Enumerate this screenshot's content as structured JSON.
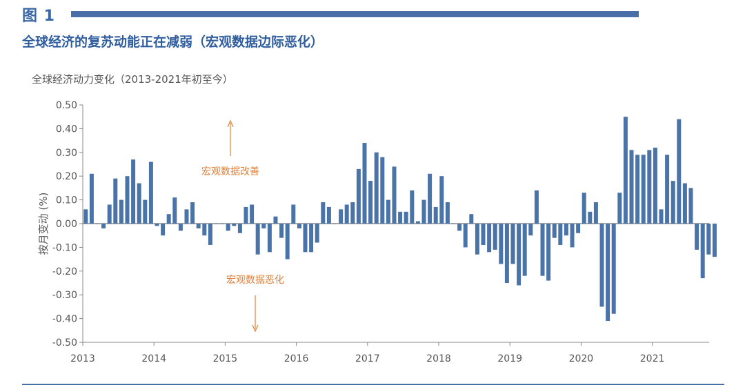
{
  "header": {
    "figure_label": "图 1",
    "title": "全球经济的复苏动能正在减弱（宏观数据边际恶化）",
    "accent_color": "#4a6fa8",
    "title_color": "#2f5d9e"
  },
  "chart_data": {
    "type": "bar",
    "title": "全球经济动力变化（2013-2021年初至今）",
    "ylabel": "按月变动 (%)",
    "xlabel": "",
    "ylim": [
      -0.5,
      0.5
    ],
    "yticks": [
      "0.50",
      "0.40",
      "0.30",
      "0.20",
      "0.10",
      "0.00",
      "-0.10",
      "-0.20",
      "-0.30",
      "-0.40",
      "-0.50"
    ],
    "x_years": [
      "2013",
      "2014",
      "2015",
      "2016",
      "2017",
      "2018",
      "2019",
      "2020",
      "2021"
    ],
    "bar_color": "#4a73a8",
    "annotation_color": "#e0803a",
    "annotations": {
      "up": "宏观数据改善",
      "down": "宏观数据恶化"
    },
    "monthly_values": [
      0.06,
      0.21,
      0.0,
      -0.02,
      0.08,
      0.19,
      0.1,
      0.2,
      0.27,
      0.17,
      0.1,
      0.26,
      -0.01,
      -0.05,
      0.04,
      0.11,
      -0.03,
      0.06,
      0.09,
      -0.02,
      -0.05,
      -0.09,
      0.0,
      0.0,
      -0.03,
      -0.01,
      -0.04,
      0.07,
      0.08,
      -0.13,
      -0.02,
      -0.12,
      0.03,
      -0.06,
      -0.15,
      0.08,
      -0.02,
      -0.12,
      -0.12,
      -0.08,
      0.09,
      0.07,
      0.0,
      0.06,
      0.08,
      0.09,
      0.23,
      0.34,
      0.18,
      0.3,
      0.28,
      0.1,
      0.24,
      0.05,
      0.05,
      0.14,
      0.01,
      0.1,
      0.21,
      0.07,
      0.2,
      0.09,
      0.0,
      -0.03,
      -0.1,
      0.04,
      -0.13,
      -0.09,
      -0.12,
      -0.11,
      -0.17,
      -0.25,
      -0.17,
      -0.26,
      -0.22,
      -0.05,
      0.14,
      -0.22,
      -0.24,
      -0.06,
      -0.09,
      -0.05,
      -0.1,
      -0.04,
      0.13,
      0.05,
      0.09,
      -0.35,
      -0.41,
      -0.38,
      0.13,
      0.45,
      0.31,
      0.29,
      0.29,
      0.31,
      0.32,
      0.06,
      0.29,
      0.18,
      0.44,
      0.17,
      0.15,
      -0.11,
      -0.23,
      -0.13,
      -0.14
    ]
  }
}
